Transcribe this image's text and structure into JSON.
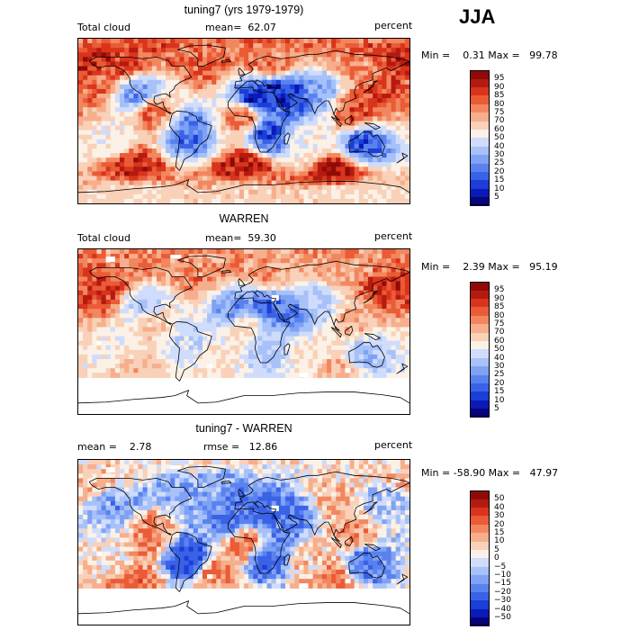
{
  "season": "JJA",
  "chart_data": [
    {
      "type": "heatmap",
      "title": "tuning7 (yrs 1979-1979)",
      "field": "Total cloud",
      "stat_left": "mean=  62.07",
      "units": "percent",
      "range_text": "Min =    0.31 Max =   99.78",
      "contour_levels": [
        5,
        10,
        15,
        20,
        25,
        30,
        40,
        50,
        60,
        70,
        75,
        80,
        85,
        90,
        95
      ],
      "colors": [
        "#08047a",
        "#0a1ab8",
        "#1a3ed6",
        "#3a62e6",
        "#5a82ef",
        "#7fa2f5",
        "#a7c1f9",
        "#cfdcfb",
        "#fbf1e6",
        "#f9d0b8",
        "#f6ae8c",
        "#f2875f",
        "#ea5b36",
        "#d9341c",
        "#b51a10",
        "#8e0b08"
      ],
      "mean": 62.07,
      "min": 0.31,
      "max": 99.78,
      "missing_south_of_lat": null,
      "regions": [
        {
          "lon": -170,
          "lat": 65,
          "value": 92
        },
        {
          "lon": -140,
          "lat": 60,
          "value": 85
        },
        {
          "lon": -40,
          "lat": 60,
          "value": 82
        },
        {
          "lon": 30,
          "lat": 60,
          "value": 80
        },
        {
          "lon": 120,
          "lat": 60,
          "value": 78
        },
        {
          "lon": 35,
          "lat": 35,
          "value": 8
        },
        {
          "lon": 55,
          "lat": 30,
          "value": 12
        },
        {
          "lon": 10,
          "lat": 25,
          "value": 10
        },
        {
          "lon": 80,
          "lat": 35,
          "value": 30
        },
        {
          "lon": -115,
          "lat": 30,
          "value": 25
        },
        {
          "lon": -60,
          "lat": -15,
          "value": 20
        },
        {
          "lon": 25,
          "lat": -15,
          "value": 15
        },
        {
          "lon": 130,
          "lat": -25,
          "value": 15
        },
        {
          "lon": 150,
          "lat": 30,
          "value": 85
        },
        {
          "lon": -160,
          "lat": 40,
          "value": 80
        },
        {
          "lon": 120,
          "lat": 10,
          "value": 85
        },
        {
          "lon": -100,
          "lat": 10,
          "value": 80
        },
        {
          "lon": 0,
          "lat": 5,
          "value": 82
        },
        {
          "lon": 0,
          "lat": -50,
          "value": 92
        },
        {
          "lon": 100,
          "lat": -55,
          "value": 94
        },
        {
          "lon": -120,
          "lat": -50,
          "value": 90
        },
        {
          "lon": -140,
          "lat": -20,
          "value": 55
        },
        {
          "lon": 70,
          "lat": -25,
          "value": 55
        },
        {
          "lon": 0,
          "lat": -80,
          "value": 65
        },
        {
          "lon": 120,
          "lat": -80,
          "value": 60
        },
        {
          "lon": -120,
          "lat": -80,
          "value": 62
        }
      ]
    },
    {
      "type": "heatmap",
      "title": "WARREN",
      "field": "Total cloud",
      "stat_left": "mean=  59.30",
      "units": "percent",
      "range_text": "Min =    2.39 Max =   95.19",
      "contour_levels": [
        5,
        10,
        15,
        20,
        25,
        30,
        40,
        50,
        60,
        70,
        75,
        80,
        85,
        90,
        95
      ],
      "colors": [
        "#08047a",
        "#0a1ab8",
        "#1a3ed6",
        "#3a62e6",
        "#5a82ef",
        "#7fa2f5",
        "#a7c1f9",
        "#cfdcfb",
        "#fbf1e6",
        "#f9d0b8",
        "#f6ae8c",
        "#f2875f",
        "#ea5b36",
        "#d9341c",
        "#b51a10",
        "#8e0b08"
      ],
      "mean": 59.3,
      "min": 2.39,
      "max": 95.19,
      "missing_south_of_lat": -50,
      "regions": [
        {
          "lon": -170,
          "lat": 65,
          "value": 82
        },
        {
          "lon": 150,
          "lat": 50,
          "value": 90
        },
        {
          "lon": -150,
          "lat": 45,
          "value": 88
        },
        {
          "lon": 30,
          "lat": 60,
          "value": 75
        },
        {
          "lon": 110,
          "lat": 60,
          "value": 72
        },
        {
          "lon": -50,
          "lat": 60,
          "value": 78
        },
        {
          "lon": 25,
          "lat": 30,
          "value": 18
        },
        {
          "lon": 50,
          "lat": 25,
          "value": 22
        },
        {
          "lon": -10,
          "lat": 25,
          "value": 25
        },
        {
          "lon": 80,
          "lat": 35,
          "value": 40
        },
        {
          "lon": -110,
          "lat": 30,
          "value": 40
        },
        {
          "lon": -60,
          "lat": -15,
          "value": 45
        },
        {
          "lon": 25,
          "lat": -20,
          "value": 38
        },
        {
          "lon": 130,
          "lat": -25,
          "value": 35
        },
        {
          "lon": 120,
          "lat": 10,
          "value": 70
        },
        {
          "lon": -100,
          "lat": 10,
          "value": 65
        },
        {
          "lon": 0,
          "lat": 5,
          "value": 62
        },
        {
          "lon": -140,
          "lat": -20,
          "value": 55
        },
        {
          "lon": 70,
          "lat": -25,
          "value": 58
        },
        {
          "lon": -30,
          "lat": -30,
          "value": 60
        },
        {
          "lon": 100,
          "lat": -40,
          "value": 72
        },
        {
          "lon": -120,
          "lat": -40,
          "value": 68
        }
      ]
    },
    {
      "type": "heatmap",
      "title": "tuning7 - WARREN",
      "field": "",
      "stat_left": "mean =    2.78",
      "stat_mid": "rmse =   12.86",
      "units": "percent",
      "range_text": "Min = -58.90 Max =   47.97",
      "contour_levels": [
        -50,
        -40,
        -30,
        -20,
        -15,
        -10,
        -5,
        0,
        5,
        10,
        15,
        20,
        30,
        40,
        50
      ],
      "tick_labels": [
        "−50",
        "−40",
        "−30",
        "−20",
        "−15",
        "−10",
        "−5",
        "0",
        "5",
        "10",
        "15",
        "20",
        "30",
        "40",
        "50"
      ],
      "colors": [
        "#08047a",
        "#0a1ab8",
        "#1a3ed6",
        "#3a62e6",
        "#5a82ef",
        "#7fa2f5",
        "#a7c1f9",
        "#cfdcfb",
        "#fbf1e6",
        "#f9d0b8",
        "#f6ae8c",
        "#f2875f",
        "#ea5b36",
        "#d9341c",
        "#b51a10",
        "#8e0b08"
      ],
      "mean": 2.78,
      "rmse": 12.86,
      "min": -58.9,
      "max": 47.97,
      "missing_south_of_lat": -50,
      "regions": [
        {
          "lon": -170,
          "lat": 65,
          "value": 10
        },
        {
          "lon": 20,
          "lat": 35,
          "value": -25
        },
        {
          "lon": 50,
          "lat": 30,
          "value": -18
        },
        {
          "lon": -10,
          "lat": 25,
          "value": -20
        },
        {
          "lon": 100,
          "lat": 50,
          "value": 12
        },
        {
          "lon": 150,
          "lat": 45,
          "value": -8
        },
        {
          "lon": -140,
          "lat": 40,
          "value": -12
        },
        {
          "lon": -60,
          "lat": 50,
          "value": -10
        },
        {
          "lon": 120,
          "lat": 10,
          "value": 15
        },
        {
          "lon": -100,
          "lat": 10,
          "value": 18
        },
        {
          "lon": 0,
          "lat": 0,
          "value": 22
        },
        {
          "lon": -60,
          "lat": -20,
          "value": -30
        },
        {
          "lon": 25,
          "lat": -20,
          "value": -22
        },
        {
          "lon": 130,
          "lat": -25,
          "value": -20
        },
        {
          "lon": -140,
          "lat": -20,
          "value": 5
        },
        {
          "lon": 70,
          "lat": -25,
          "value": 8
        },
        {
          "lon": 100,
          "lat": -40,
          "value": 20
        },
        {
          "lon": -120,
          "lat": -40,
          "value": 22
        },
        {
          "lon": -30,
          "lat": -35,
          "value": 18
        }
      ]
    }
  ]
}
